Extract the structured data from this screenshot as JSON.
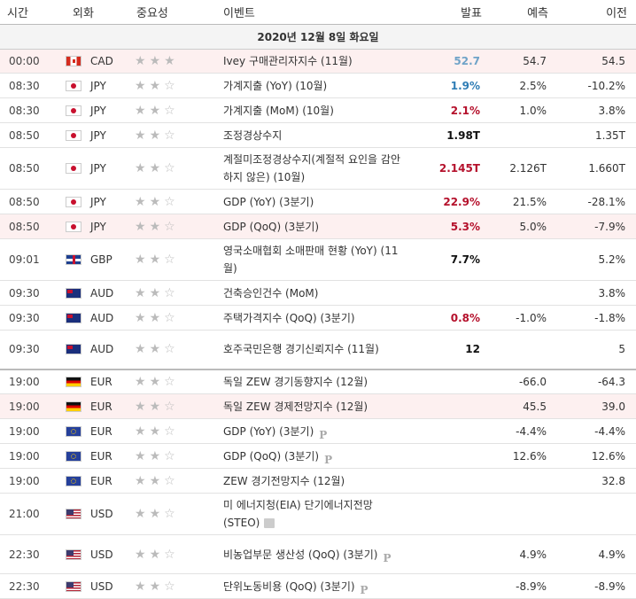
{
  "headers": {
    "time": "시간",
    "currency": "외화",
    "importance": "중요성",
    "event": "이벤트",
    "actual": "발표",
    "forecast": "예측",
    "previous": "이전"
  },
  "date_label": "2020년 12월 8일 화요일",
  "colors": {
    "highlight_row": "#fdf0f0",
    "actual_positive": "#2f7db5",
    "actual_negative": "#b5112c"
  },
  "rows": [
    {
      "time": "00:00",
      "flag": "canada-flag",
      "cur": "CAD",
      "stars": 3,
      "event": "Ivey 구매관리자지수 (11월)",
      "actual": "52.7",
      "forecast": "54.7",
      "previous": "54.5",
      "tone": "dim",
      "hl": true
    },
    {
      "time": "08:30",
      "flag": "japan-flag",
      "cur": "JPY",
      "stars": 2,
      "event": "가계지출 (YoY) (10월)",
      "actual": "1.9%",
      "forecast": "2.5%",
      "previous": "-10.2%",
      "tone": "pos"
    },
    {
      "time": "08:30",
      "flag": "japan-flag",
      "cur": "JPY",
      "stars": 2,
      "event": "가계지출 (MoM) (10월)",
      "actual": "2.1%",
      "forecast": "1.0%",
      "previous": "3.8%",
      "tone": "neg"
    },
    {
      "time": "08:50",
      "flag": "japan-flag",
      "cur": "JPY",
      "stars": 2,
      "event": "조정경상수지",
      "actual": "1.98T",
      "forecast": "",
      "previous": "1.35T",
      "tone": ""
    },
    {
      "time": "08:50",
      "flag": "japan-flag",
      "cur": "JPY",
      "stars": 2,
      "event": "계절미조정경상수지(계절적 요인을 감안하지 않은) (10월)",
      "actual": "2.145T",
      "forecast": "2.126T",
      "previous": "1.660T",
      "tone": "neg"
    },
    {
      "time": "08:50",
      "flag": "japan-flag",
      "cur": "JPY",
      "stars": 2,
      "event": "GDP (YoY) (3분기)",
      "actual": "22.9%",
      "forecast": "21.5%",
      "previous": "-28.1%",
      "tone": "neg"
    },
    {
      "time": "08:50",
      "flag": "japan-flag",
      "cur": "JPY",
      "stars": 2,
      "event": "GDP (QoQ) (3분기)",
      "actual": "5.3%",
      "forecast": "5.0%",
      "previous": "-7.9%",
      "tone": "neg",
      "hl": true
    },
    {
      "time": "09:01",
      "flag": "uk-flag",
      "cur": "GBP",
      "stars": 2,
      "event": "영국소매협회 소매판매 현황 (YoY) (11월)",
      "actual": "7.7%",
      "forecast": "",
      "previous": "5.2%",
      "tone": ""
    },
    {
      "time": "09:30",
      "flag": "australia-flag",
      "cur": "AUD",
      "stars": 2,
      "event": "건축승인건수 (MoM)",
      "actual": "",
      "forecast": "",
      "previous": "3.8%",
      "tone": ""
    },
    {
      "time": "09:30",
      "flag": "australia-flag",
      "cur": "AUD",
      "stars": 2,
      "event": "주택가격지수 (QoQ) (3분기)",
      "actual": "0.8%",
      "forecast": "-1.0%",
      "previous": "-1.8%",
      "tone": "neg"
    },
    {
      "time": "09:30",
      "flag": "australia-flag",
      "cur": "AUD",
      "stars": 2,
      "event": "호주국민은행 경기신뢰지수 (11월)",
      "actual": "12",
      "forecast": "",
      "previous": "5",
      "tone": ""
    },
    {
      "time": "19:00",
      "flag": "germany-flag",
      "cur": "EUR",
      "stars": 2,
      "event": "독일 ZEW 경기동향지수 (12월)",
      "actual": "",
      "forecast": "-66.0",
      "previous": "-64.3",
      "tone": "",
      "sep": true
    },
    {
      "time": "19:00",
      "flag": "germany-flag",
      "cur": "EUR",
      "stars": 2,
      "event": "독일 ZEW 경제전망지수 (12월)",
      "actual": "",
      "forecast": "45.5",
      "previous": "39.0",
      "tone": "",
      "hl": true
    },
    {
      "time": "19:00",
      "flag": "eu-flag",
      "cur": "EUR",
      "stars": 2,
      "event": "GDP (YoY) (3분기)",
      "actual": "",
      "forecast": "-4.4%",
      "previous": "-4.4%",
      "tone": "",
      "p": true
    },
    {
      "time": "19:00",
      "flag": "eu-flag",
      "cur": "EUR",
      "stars": 2,
      "event": "GDP (QoQ) (3분기)",
      "actual": "",
      "forecast": "12.6%",
      "previous": "12.6%",
      "tone": "",
      "p": true
    },
    {
      "time": "19:00",
      "flag": "eu-flag",
      "cur": "EUR",
      "stars": 2,
      "event": "ZEW 경기전망지수 (12월)",
      "actual": "",
      "forecast": "",
      "previous": "32.8",
      "tone": ""
    },
    {
      "time": "21:00",
      "flag": "usa-flag",
      "cur": "USD",
      "stars": 2,
      "event": "미 에너지청(EIA) 단기에너지전망 (STEO)",
      "actual": "",
      "forecast": "",
      "previous": "",
      "tone": "",
      "b": true
    },
    {
      "time": "22:30",
      "flag": "usa-flag",
      "cur": "USD",
      "stars": 2,
      "event": "비농업부문 생산성 (QoQ) (3분기)",
      "actual": "",
      "forecast": "4.9%",
      "previous": "4.9%",
      "tone": "",
      "p": true
    },
    {
      "time": "22:30",
      "flag": "usa-flag",
      "cur": "USD",
      "stars": 2,
      "event": "단위노동비용 (QoQ) (3분기)",
      "actual": "",
      "forecast": "-8.9%",
      "previous": "-8.9%",
      "tone": "",
      "p": true
    }
  ]
}
